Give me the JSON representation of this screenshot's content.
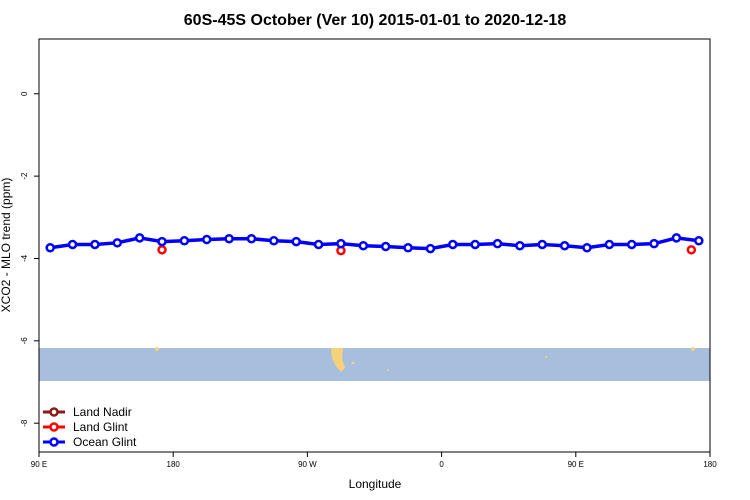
{
  "chart_data": {
    "type": "line",
    "title": "60S-45S October (Ver 10)   2015-01-01 to 2020-12-18",
    "x_label": "Longitude",
    "y_label": "XCO2 - MLO trend (ppm)",
    "xlim": [
      90,
      540
    ],
    "xticks": [
      {
        "value": 90,
        "label": "90 E"
      },
      {
        "value": 180,
        "label": "180"
      },
      {
        "value": 270,
        "label": "90 W"
      },
      {
        "value": 360,
        "label": "0"
      },
      {
        "value": 450,
        "label": "90 E"
      },
      {
        "value": 540,
        "label": "180"
      }
    ],
    "ylim": [
      -8.7,
      1.33
    ],
    "yticks": [
      0,
      -2,
      -4,
      -6,
      -8
    ],
    "legend": "bottom-left",
    "series": [
      {
        "name": "Land Nadir",
        "color": "#8b1a1a",
        "x": [],
        "values": [],
        "line": true
      },
      {
        "name": "Land Glint",
        "color": "#ff0000",
        "x": [
          172.5,
          292.5,
          527.5
        ],
        "values": [
          -3.79,
          -3.81,
          -3.79
        ],
        "line": false
      },
      {
        "name": "Ocean Glint",
        "color": "#0000ff",
        "x": [
          97.5,
          112.5,
          127.5,
          142.5,
          157.5,
          172.5,
          187.5,
          202.5,
          217.5,
          232.5,
          247.5,
          262.5,
          277.5,
          292.5,
          307.5,
          322.5,
          337.5,
          352.5,
          367.5,
          382.5,
          397.5,
          412.5,
          427.5,
          442.5,
          457.5,
          472.5,
          487.5,
          502.5,
          517.5,
          532.5
        ],
        "values": [
          -3.74,
          -3.66,
          -3.66,
          -3.62,
          -3.5,
          -3.59,
          -3.57,
          -3.54,
          -3.52,
          -3.52,
          -3.57,
          -3.59,
          -3.66,
          -3.64,
          -3.69,
          -3.71,
          -3.74,
          -3.76,
          -3.66,
          -3.66,
          -3.64,
          -3.69,
          -3.66,
          -3.69,
          -3.74,
          -3.66,
          -3.66,
          -3.64,
          -3.5,
          -3.57
        ],
        "line": true
      }
    ]
  }
}
